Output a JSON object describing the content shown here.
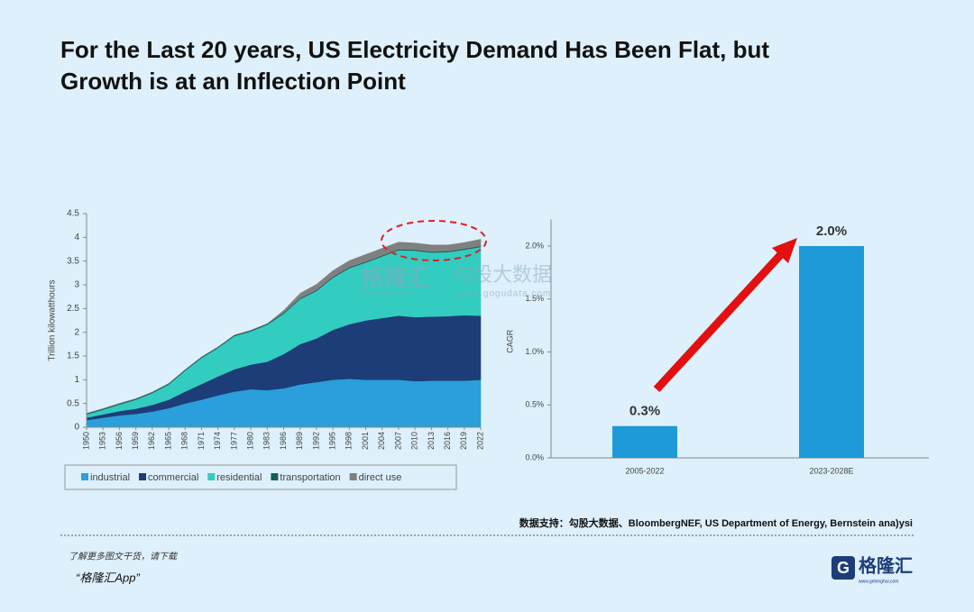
{
  "title": [
    "For the Last 20 years, US Electricity Demand Has Been Flat, but",
    "Growth is at an Inflection Point"
  ],
  "chart_data": [
    {
      "type": "area",
      "ylabel": "Trillion kilowatthours",
      "x": [
        1950,
        1953,
        1956,
        1959,
        1962,
        1965,
        1968,
        1971,
        1974,
        1977,
        1980,
        1983,
        1986,
        1989,
        1992,
        1995,
        1998,
        2001,
        2004,
        2007,
        2010,
        2013,
        2016,
        2019,
        2022
      ],
      "xlim": [
        1950,
        2022
      ],
      "xticks": [
        1950,
        1953,
        1956,
        1959,
        1962,
        1965,
        1968,
        1971,
        1974,
        1977,
        1980,
        1983,
        1986,
        1989,
        1992,
        1995,
        1998,
        2001,
        2004,
        2007,
        2010,
        2013,
        2016,
        2019,
        2022
      ],
      "ylim": [
        0,
        4.5
      ],
      "yticks": [
        0,
        0.5,
        1,
        1.5,
        2,
        2.5,
        3,
        3.5,
        4,
        4.5
      ],
      "stacked": true,
      "legend": "bottom",
      "series": [
        {
          "name": "industrial",
          "color": "#2a9fdb",
          "values": [
            0.15,
            0.2,
            0.25,
            0.28,
            0.33,
            0.4,
            0.5,
            0.58,
            0.67,
            0.75,
            0.8,
            0.78,
            0.82,
            0.9,
            0.95,
            1.0,
            1.02,
            1.0,
            1.0,
            1.0,
            0.97,
            0.98,
            0.98,
            0.98,
            1.0
          ]
        },
        {
          "name": "commercial",
          "color": "#1c3d78",
          "values": [
            0.05,
            0.07,
            0.09,
            0.11,
            0.14,
            0.18,
            0.25,
            0.33,
            0.4,
            0.47,
            0.52,
            0.6,
            0.72,
            0.85,
            0.92,
            1.05,
            1.15,
            1.25,
            1.3,
            1.35,
            1.35,
            1.35,
            1.36,
            1.38,
            1.35
          ]
        },
        {
          "name": "residential",
          "color": "#33ccc0",
          "values": [
            0.07,
            0.1,
            0.14,
            0.19,
            0.25,
            0.32,
            0.44,
            0.55,
            0.6,
            0.7,
            0.7,
            0.78,
            0.85,
            0.95,
            1.0,
            1.1,
            1.18,
            1.22,
            1.3,
            1.38,
            1.4,
            1.35,
            1.35,
            1.38,
            1.45
          ]
        },
        {
          "name": "transportation",
          "color": "#1b5c58",
          "values": [
            0.02,
            0.02,
            0.02,
            0.02,
            0.02,
            0.02,
            0.02,
            0.02,
            0.02,
            0.02,
            0.02,
            0.02,
            0.02,
            0.02,
            0.02,
            0.02,
            0.02,
            0.02,
            0.02,
            0.02,
            0.02,
            0.02,
            0.02,
            0.02,
            0.02
          ]
        },
        {
          "name": "direct use",
          "color": "#808080",
          "values": [
            0,
            0,
            0,
            0,
            0,
            0,
            0,
            0,
            0,
            0,
            0,
            0,
            0.05,
            0.1,
            0.12,
            0.13,
            0.14,
            0.15,
            0.15,
            0.15,
            0.14,
            0.14,
            0.13,
            0.13,
            0.14
          ]
        }
      ]
    },
    {
      "type": "bar",
      "ylabel": "CAGR",
      "categories": [
        "2005-2022",
        "2023-2028E"
      ],
      "values": [
        0.3,
        2.0
      ],
      "value_labels": [
        "0.3%",
        "2.0%"
      ],
      "color": "#1e9ad9",
      "ylim": [
        0,
        2.2
      ],
      "yticks": [
        {
          "value": 0,
          "label": "0.0%"
        },
        {
          "value": 0.5,
          "label": "0.5%"
        },
        {
          "value": 1,
          "label": "1.0%"
        },
        {
          "value": 1.5,
          "label": "1.5%"
        },
        {
          "value": 2,
          "label": "2.0%"
        }
      ]
    }
  ],
  "watermark": [
    "格隆汇",
    "www.gelonghui.com",
    "勾股大数据",
    "www.gogudata.com"
  ],
  "source": "数据支持：勾股大数据、BloombergNEF, US Department of Energy, Bernstein ana)ysi",
  "footer": {
    "line1": "了解更多图文干货，请下载",
    "line2": "“格隆汇App”",
    "logo": "格隆汇",
    "logo_url": "www.gelonghui.com"
  }
}
